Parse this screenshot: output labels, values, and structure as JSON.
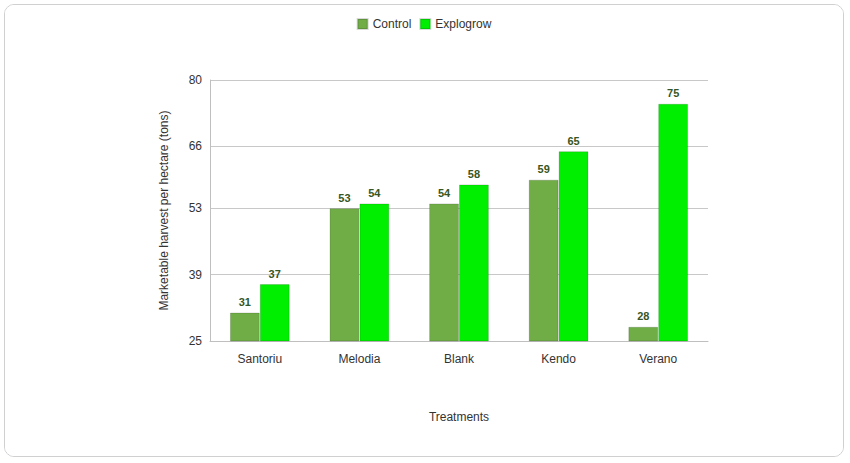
{
  "chart_data": {
    "type": "bar",
    "categories": [
      "Santoriu",
      "Melodia",
      "Blank",
      "Kendo",
      "Verano"
    ],
    "series": [
      {
        "name": "Control",
        "color": "#70ad47",
        "values": [
          31,
          53,
          54,
          59,
          28
        ]
      },
      {
        "name": "Explogrow",
        "color": "#00ee00",
        "values": [
          37,
          54,
          58,
          65,
          75
        ]
      }
    ],
    "xlabel": "Treatments",
    "ylabel": "Marketable harvest per hectare (tons)",
    "ylim": [
      25,
      80
    ],
    "yticks": [
      25,
      39,
      53,
      66,
      80
    ],
    "grid": true,
    "legend": "top",
    "data_labels": true
  }
}
